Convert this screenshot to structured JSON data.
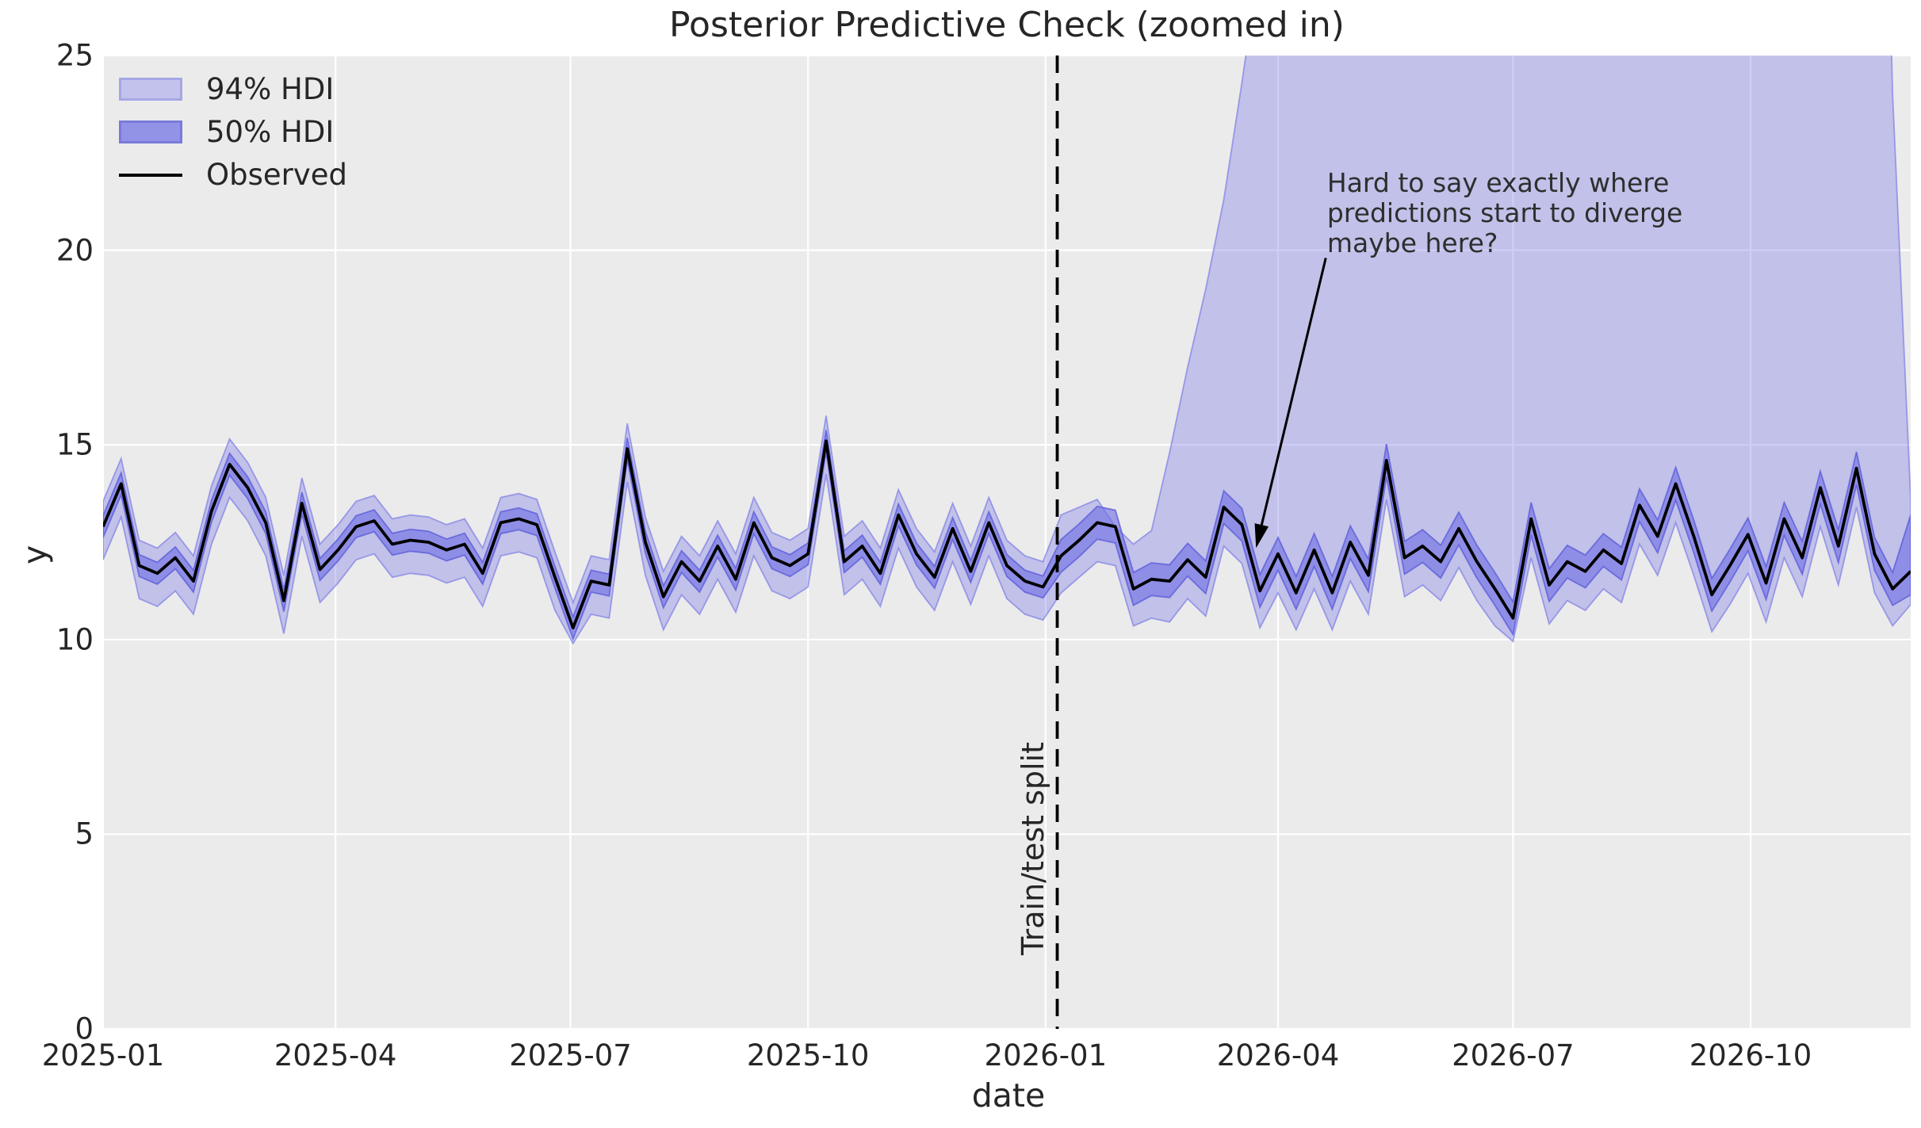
{
  "title": "Posterior Predictive Check (zoomed in)",
  "xlabel": "date",
  "ylabel": "y",
  "legend": {
    "items": [
      {
        "label": "94% HDI",
        "kind": "band94"
      },
      {
        "label": "50% HDI",
        "kind": "band50"
      },
      {
        "label": "Observed",
        "kind": "line"
      }
    ]
  },
  "split_line": {
    "label": "Train/test split",
    "day": 369.5,
    "date": "2026-01-04"
  },
  "annotation": {
    "lines": [
      "Hard to say exactly where",
      "predictions start to diverge",
      "maybe here?"
    ],
    "text_day": 474,
    "text_val": 22.1,
    "arrow_from_day": 473.5,
    "arrow_from_val": 19.8,
    "arrow_to_day": 446.5,
    "arrow_to_val": 12.35
  },
  "colors": {
    "figure_bg": "#ffffff",
    "axes_bg": "#ebebeb",
    "grid": "#ffffff",
    "band_94_fill": "rgba(118,118,230,0.36)",
    "band_94_edge": "rgba(118,118,230,0.65)",
    "band_50_fill": "rgba(112,112,228,0.62)",
    "band_50_edge": "rgba(96,96,220,0.85)",
    "observed_line": "#000000",
    "split_line": "#000000",
    "legend_94_fill": "#c2c2ec",
    "legend_94_edge": "#a6a6e6",
    "legend_50_fill": "#9292e7",
    "legend_50_edge": "#7a7ad9",
    "text": "#262626"
  },
  "chart_data": {
    "type": "line",
    "subtype": "timeseries-with-hdi-bands",
    "x_start_date": "2025-01-01",
    "x_step_days": 7,
    "n_points": 101,
    "xlim_days": [
      0,
      700
    ],
    "ylim": [
      0,
      25
    ],
    "grid": true,
    "legend_position": "upper left",
    "xticks": [
      {
        "label": "2025-01",
        "day": 0
      },
      {
        "label": "2025-04",
        "day": 90
      },
      {
        "label": "2025-07",
        "day": 181
      },
      {
        "label": "2025-10",
        "day": 273
      },
      {
        "label": "2026-01",
        "day": 365
      },
      {
        "label": "2026-04",
        "day": 455
      },
      {
        "label": "2026-07",
        "day": 546
      },
      {
        "label": "2026-10",
        "day": 638
      }
    ],
    "yticks": [
      0,
      5,
      10,
      15,
      20,
      25
    ],
    "observed": [
      12.9,
      14.0,
      11.9,
      11.7,
      12.1,
      11.5,
      13.3,
      14.5,
      13.9,
      13.0,
      11.0,
      13.5,
      11.8,
      12.3,
      12.9,
      13.05,
      12.45,
      12.55,
      12.5,
      12.3,
      12.45,
      11.7,
      13.0,
      13.1,
      12.95,
      11.6,
      10.3,
      11.5,
      11.4,
      14.9,
      12.5,
      11.1,
      12.0,
      11.5,
      12.4,
      11.55,
      13.0,
      12.1,
      11.9,
      12.2,
      15.1,
      12.0,
      12.4,
      11.7,
      13.2,
      12.2,
      11.6,
      12.85,
      11.75,
      13.0,
      11.9,
      11.5,
      11.35,
      12.15,
      12.55,
      13.0,
      12.9,
      11.3,
      11.55,
      11.5,
      12.05,
      11.6,
      13.4,
      12.95,
      11.25,
      12.2,
      11.2,
      12.3,
      11.2,
      12.5,
      11.65,
      14.6,
      12.1,
      12.4,
      12.0,
      12.85,
      12.0,
      11.3,
      10.55,
      13.1,
      11.4,
      12.0,
      11.75,
      12.3,
      11.95,
      13.45,
      12.65,
      14.0,
      12.65,
      11.15,
      11.9,
      12.7,
      11.45,
      13.1,
      12.1,
      13.9,
      12.4,
      14.4,
      12.2,
      11.3,
      11.75
    ],
    "hdi94_hi": [
      13.55,
      14.65,
      12.55,
      12.35,
      12.75,
      12.15,
      13.95,
      15.15,
      14.55,
      13.65,
      11.65,
      14.15,
      12.45,
      12.95,
      13.55,
      13.7,
      13.1,
      13.2,
      13.15,
      12.95,
      13.1,
      12.35,
      13.65,
      13.75,
      13.6,
      12.25,
      10.95,
      12.15,
      12.05,
      15.55,
      13.15,
      11.75,
      12.65,
      12.15,
      13.05,
      12.2,
      13.65,
      12.75,
      12.55,
      12.85,
      15.75,
      12.65,
      13.05,
      12.35,
      13.85,
      12.85,
      12.25,
      13.5,
      12.4,
      13.65,
      12.55,
      12.15,
      12.0,
      13.2,
      13.4,
      13.6,
      12.9,
      12.45,
      12.8,
      14.8,
      17.0,
      19.0,
      21.3,
      24.3,
      27.5,
      31,
      34,
      36,
      38,
      39,
      41,
      42,
      43,
      44,
      44,
      45,
      45,
      44,
      43,
      44,
      43,
      42,
      42,
      43,
      43,
      44,
      44,
      45,
      44,
      42,
      41,
      42,
      41,
      43,
      42,
      44,
      43,
      45,
      42,
      24,
      13.6
    ],
    "hdi94_lo": [
      12.05,
      13.15,
      11.05,
      10.85,
      11.25,
      10.65,
      12.45,
      13.65,
      13.05,
      12.15,
      10.15,
      12.65,
      10.95,
      11.45,
      12.05,
      12.2,
      11.6,
      11.7,
      11.65,
      11.45,
      11.6,
      10.85,
      12.15,
      12.25,
      12.1,
      10.75,
      9.9,
      10.65,
      10.55,
      14.05,
      11.65,
      10.25,
      11.15,
      10.65,
      11.55,
      10.7,
      12.15,
      11.25,
      11.05,
      11.35,
      14.25,
      11.15,
      11.55,
      10.85,
      12.35,
      11.35,
      10.75,
      12.0,
      10.9,
      12.15,
      11.05,
      10.65,
      10.5,
      11.2,
      11.6,
      12.0,
      11.9,
      10.35,
      10.55,
      10.45,
      11.05,
      10.6,
      12.4,
      11.95,
      10.3,
      11.2,
      10.25,
      11.3,
      10.25,
      11.5,
      10.65,
      13.6,
      11.1,
      11.4,
      11.0,
      11.85,
      11.0,
      10.35,
      9.95,
      12.1,
      10.4,
      11.0,
      10.75,
      11.3,
      10.95,
      12.45,
      11.65,
      13.0,
      11.65,
      10.2,
      10.9,
      11.7,
      10.45,
      12.1,
      11.1,
      12.9,
      11.4,
      13.4,
      11.2,
      10.35,
      10.9
    ],
    "hdi50_hi": [
      13.18,
      14.28,
      12.18,
      11.98,
      12.38,
      11.78,
      13.58,
      14.78,
      14.18,
      13.28,
      11.28,
      13.78,
      12.08,
      12.58,
      13.18,
      13.33,
      12.73,
      12.83,
      12.78,
      12.58,
      12.73,
      11.98,
      13.28,
      13.38,
      13.23,
      11.88,
      10.58,
      11.78,
      11.68,
      15.18,
      12.78,
      11.38,
      12.28,
      11.78,
      12.68,
      11.83,
      13.28,
      12.38,
      12.18,
      12.48,
      15.38,
      12.28,
      12.68,
      11.98,
      13.48,
      12.48,
      11.88,
      13.13,
      12.03,
      13.28,
      12.18,
      11.78,
      11.63,
      12.57,
      12.97,
      13.42,
      13.32,
      11.72,
      11.97,
      11.92,
      12.47,
      12.02,
      13.82,
      13.37,
      11.67,
      12.62,
      11.62,
      12.72,
      11.62,
      12.92,
      12.07,
      15.02,
      12.52,
      12.82,
      12.42,
      13.27,
      12.42,
      11.72,
      10.97,
      13.52,
      11.82,
      12.42,
      12.17,
      12.72,
      12.37,
      13.87,
      13.07,
      14.42,
      13.07,
      11.57,
      12.32,
      13.12,
      11.87,
      13.52,
      12.52,
      14.32,
      12.82,
      14.82,
      12.62,
      11.72,
      13.2
    ],
    "hdi50_lo": [
      12.62,
      13.72,
      11.62,
      11.42,
      11.82,
      11.22,
      13.02,
      14.22,
      13.62,
      12.72,
      10.72,
      13.22,
      11.52,
      12.02,
      12.62,
      12.77,
      12.17,
      12.27,
      12.22,
      12.02,
      12.17,
      11.42,
      12.72,
      12.82,
      12.67,
      11.32,
      10.02,
      11.22,
      11.12,
      14.62,
      12.22,
      10.82,
      11.72,
      11.22,
      12.12,
      11.27,
      12.72,
      11.82,
      11.62,
      11.92,
      14.82,
      11.72,
      12.12,
      11.42,
      12.92,
      11.92,
      11.32,
      12.57,
      11.47,
      12.72,
      11.62,
      11.22,
      11.07,
      11.73,
      12.13,
      12.58,
      12.48,
      10.88,
      11.13,
      11.08,
      11.63,
      11.18,
      12.98,
      12.53,
      10.83,
      11.78,
      10.78,
      11.88,
      10.78,
      12.08,
      11.23,
      14.18,
      11.68,
      11.98,
      11.58,
      12.43,
      11.58,
      10.88,
      10.13,
      12.68,
      10.98,
      11.58,
      11.33,
      11.88,
      11.53,
      13.03,
      12.23,
      13.58,
      12.23,
      10.73,
      11.48,
      12.28,
      11.03,
      12.68,
      11.68,
      13.48,
      11.98,
      13.98,
      11.78,
      10.88,
      11.15
    ]
  }
}
